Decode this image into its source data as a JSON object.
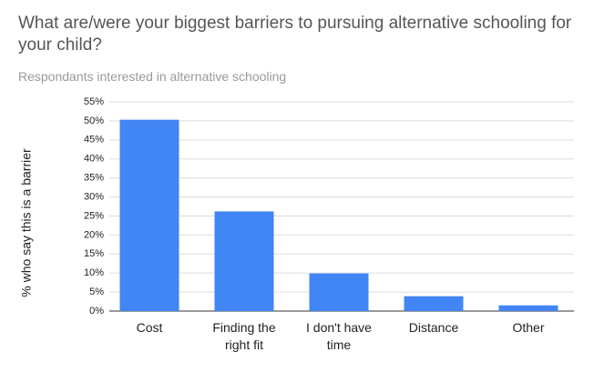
{
  "chart_data": {
    "type": "bar",
    "title": "What are/were your biggest barriers to pursuing alternative schooling for your child?",
    "subtitle": "Respondants interested in alternative schooling",
    "y_label": "% who say this is a barrier",
    "categories": [
      "Cost",
      "Finding the right fit",
      "I don't have time",
      "Distance",
      "Other"
    ],
    "values": [
      50.3,
      26.2,
      9.9,
      3.9,
      1.5
    ],
    "color": "#4285f4",
    "ylim": [
      0,
      55
    ],
    "yticks": [
      {
        "value": 0,
        "label": "0%"
      },
      {
        "value": 5,
        "label": "5%"
      },
      {
        "value": 10,
        "label": "10%"
      },
      {
        "value": 15,
        "label": "15%"
      },
      {
        "value": 20,
        "label": "20%"
      },
      {
        "value": 25,
        "label": "25%"
      },
      {
        "value": 30,
        "label": "30%"
      },
      {
        "value": 35,
        "label": "35%"
      },
      {
        "value": 40,
        "label": "40%"
      },
      {
        "value": 45,
        "label": "45%"
      },
      {
        "value": 50,
        "label": "50%"
      },
      {
        "value": 55,
        "label": "55%"
      }
    ],
    "grid": true
  }
}
